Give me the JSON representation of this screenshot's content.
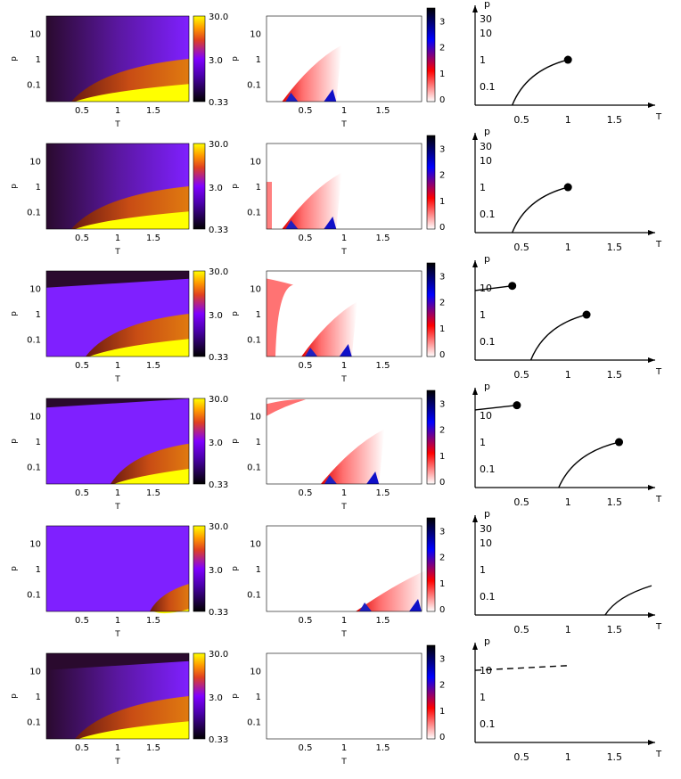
{
  "figure": {
    "rows": 6,
    "columns": [
      "density heatmap",
      "difference heatmap",
      "phase diagram"
    ]
  },
  "chart_data": [
    {
      "type": "heatmap",
      "panel": "density-map",
      "xlabel": "T",
      "ylabel": "p",
      "xticks": [
        "0.5",
        "1",
        "1.5"
      ],
      "xtick_values": [
        0.5,
        1,
        1.5
      ],
      "yticks": [
        "10",
        "1",
        "0.1"
      ],
      "ytick_values": [
        10,
        1,
        0.1
      ],
      "xlim": [
        0,
        2
      ],
      "ylim": [
        0.02,
        50
      ],
      "yscale": "log",
      "colorbar": {
        "ticks": [
          "30.0",
          "3.0",
          "0.33"
        ],
        "tick_values": [
          30,
          3,
          0.33
        ],
        "scale": "log",
        "colors": [
          "#000000",
          "#7f00ff",
          "#ff5000",
          "#ffff00"
        ]
      },
      "rows": [
        {
          "row": 1,
          "transition_T0": 0.35,
          "transition_T1": 2.0,
          "transition_p1": 1.0,
          "vapor_band_p": null
        },
        {
          "row": 2,
          "transition_T0": 0.35,
          "transition_T1": 2.0,
          "transition_p1": 1.0,
          "vapor_band_p": null
        },
        {
          "row": 3,
          "transition_T0": 0.55,
          "transition_T1": 2.0,
          "transition_p1": 1.0,
          "vapor_band_p": 15
        },
        {
          "row": 4,
          "transition_T0": 0.9,
          "transition_T1": 2.0,
          "transition_p1": 0.8,
          "vapor_band_p": 30
        },
        {
          "row": 5,
          "transition_T0": 1.45,
          "transition_T1": 2.0,
          "transition_p1": 0.25,
          "vapor_band_p": null
        },
        {
          "row": 6,
          "transition_T0": 0.4,
          "transition_T1": 2.0,
          "transition_p1": 1.0,
          "vapor_band_p": 15
        }
      ]
    },
    {
      "type": "heatmap",
      "panel": "difference-map",
      "xlabel": "T",
      "ylabel": "p",
      "xticks": [
        "0.5",
        "1",
        "1.5"
      ],
      "xtick_values": [
        0.5,
        1,
        1.5
      ],
      "yticks": [
        "10",
        "1",
        "0.1"
      ],
      "ytick_values": [
        10,
        1,
        0.1
      ],
      "xlim": [
        0,
        2
      ],
      "ylim": [
        0.02,
        50
      ],
      "yscale": "log",
      "colorbar": {
        "ticks": [
          "0",
          "1",
          "2",
          "3"
        ],
        "tick_values": [
          0,
          1,
          2,
          3
        ],
        "colors": [
          "#ffffff",
          "#ff0000",
          "#0000ff",
          "#000000"
        ]
      },
      "rows": [
        {
          "row": 1,
          "band_T0": 0.2,
          "band_T1": 0.9,
          "band_p1": 3.5,
          "extra_band": null
        },
        {
          "row": 2,
          "band_T0": 0.2,
          "band_T1": 0.9,
          "band_p1": 3.5,
          "extra_band": "left-edge"
        },
        {
          "row": 3,
          "band_T0": 0.45,
          "band_T1": 1.1,
          "band_p1": 3.0,
          "extra_band": "low-T-high-p"
        },
        {
          "row": 4,
          "band_T0": 0.7,
          "band_T1": 1.45,
          "band_p1": 3.0,
          "extra_band": "top-left"
        },
        {
          "row": 5,
          "band_T0": 1.15,
          "band_T1": 2.0,
          "band_p1": 0.9,
          "extra_band": null
        },
        {
          "row": 6,
          "band_T0": null,
          "band_T1": null,
          "band_p1": null,
          "extra_band": null
        }
      ]
    },
    {
      "type": "line",
      "panel": "phase-diagram",
      "xlabel": "T",
      "ylabel": "p",
      "xticks": [
        "0.5",
        "1",
        "1.5"
      ],
      "xtick_values": [
        0.5,
        1,
        1.5
      ],
      "yticks": [
        "10",
        "1",
        "0.1"
      ],
      "ytick_values": [
        10,
        1,
        0.1
      ],
      "extra_ytick_label": "30",
      "xlim": [
        0,
        1.9
      ],
      "ylim": [
        0.02,
        80
      ],
      "yscale": "log",
      "rows": [
        {
          "row": 1,
          "lines": [
            {
              "kind": "solid",
              "T0": 0.4,
              "p0": 0.02,
              "T1": 1.0,
              "p1": 1.0,
              "critical_point": [
                1.0,
                1.0
              ]
            }
          ]
        },
        {
          "row": 2,
          "lines": [
            {
              "kind": "solid",
              "T0": 0.4,
              "p0": 0.02,
              "T1": 1.0,
              "p1": 1.0,
              "critical_point": [
                1.0,
                1.0
              ]
            }
          ]
        },
        {
          "row": 3,
          "lines": [
            {
              "kind": "solid",
              "T0": 0.6,
              "p0": 0.02,
              "T1": 1.2,
              "p1": 1.0,
              "critical_point": [
                1.2,
                1.0
              ]
            },
            {
              "kind": "straight",
              "T0": 0.0,
              "p0": 8.0,
              "T1": 0.4,
              "p1": 12.0,
              "critical_point": [
                0.4,
                12.0
              ]
            }
          ]
        },
        {
          "row": 4,
          "lines": [
            {
              "kind": "solid",
              "T0": 0.9,
              "p0": 0.02,
              "T1": 1.55,
              "p1": 1.0,
              "critical_point": [
                1.55,
                1.0
              ]
            },
            {
              "kind": "straight",
              "T0": 0.0,
              "p0": 16.0,
              "T1": 0.45,
              "p1": 24.0,
              "critical_point": [
                0.45,
                24.0
              ]
            }
          ]
        },
        {
          "row": 5,
          "lines": [
            {
              "kind": "solid",
              "T0": 1.4,
              "p0": 0.02,
              "T1": 1.9,
              "p1": 0.25,
              "critical_point": null
            }
          ]
        },
        {
          "row": 6,
          "lines": [
            {
              "kind": "dashed",
              "T0": 0.0,
              "p0": 10.0,
              "T1": 1.0,
              "p1": 15.0,
              "critical_point": null
            }
          ]
        }
      ]
    }
  ]
}
